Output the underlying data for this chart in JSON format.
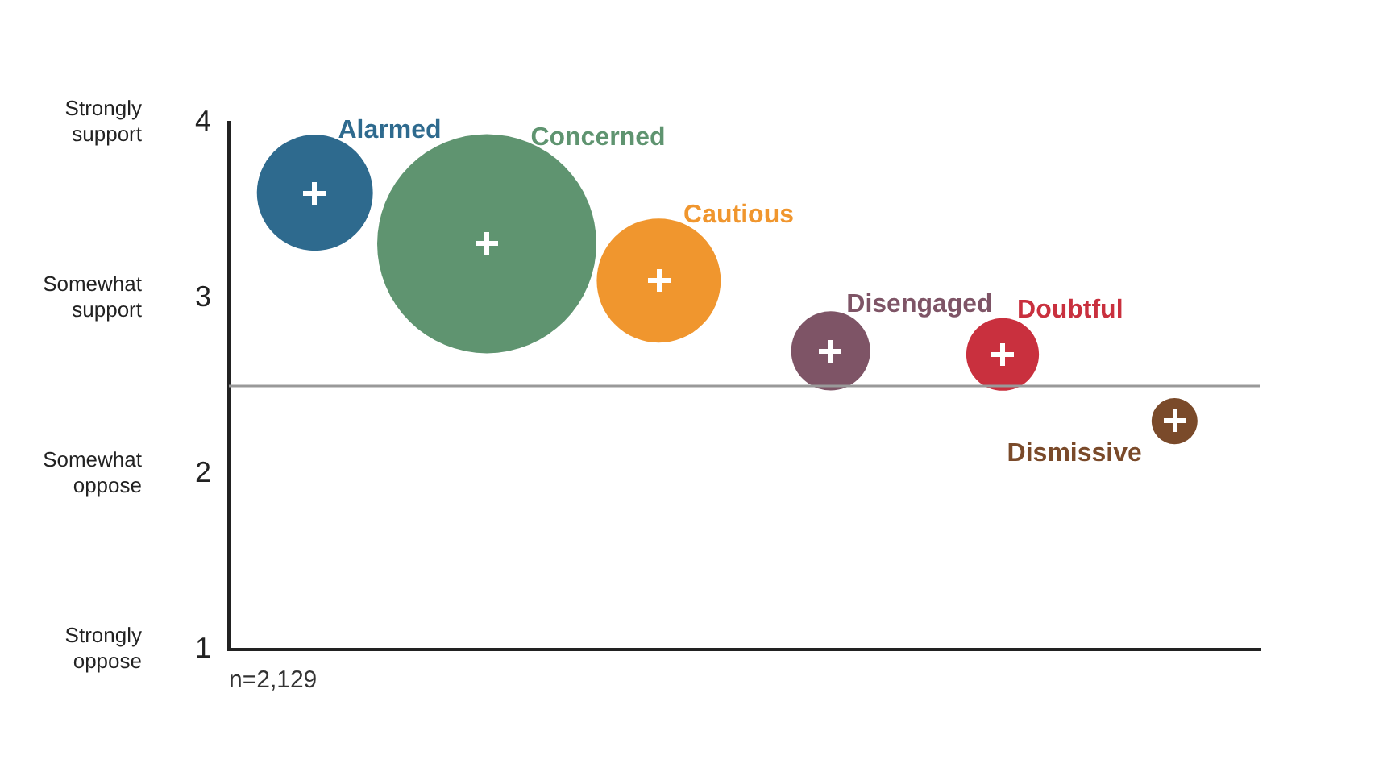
{
  "chart_data": {
    "type": "bubble",
    "categories": [
      null,
      null,
      null,
      null,
      null,
      null
    ],
    "series": [
      {
        "name": "Alarmed",
        "color": "#2e6a8e",
        "values": [
          3.6,
          null,
          null,
          null,
          null,
          null
        ],
        "sizes": [
          0.28,
          null,
          null,
          null,
          null,
          null
        ]
      },
      {
        "name": "Concerned",
        "color": "#5f9470",
        "values": [
          null,
          3.31,
          null,
          null,
          null,
          null
        ],
        "sizes": [
          null,
          1,
          null,
          null,
          null,
          null
        ]
      },
      {
        "name": "Cautious",
        "color": "#f0962e",
        "values": [
          null,
          null,
          3.1,
          null,
          null,
          null
        ],
        "sizes": [
          null,
          null,
          0.32,
          null,
          null,
          null
        ]
      },
      {
        "name": "Disengaged",
        "color": "#7e5466",
        "values": [
          null,
          null,
          null,
          2.7,
          null,
          null
        ],
        "sizes": [
          null,
          null,
          null,
          0.13,
          null,
          null
        ]
      },
      {
        "name": "Doubtful",
        "color": "#c9303e",
        "values": [
          null,
          null,
          null,
          null,
          2.68,
          null
        ],
        "sizes": [
          null,
          null,
          null,
          null,
          0.11,
          null
        ]
      },
      {
        "name": "Dismissive",
        "color": "#7a4a2a",
        "values": [
          null,
          null,
          null,
          null,
          null,
          2.3
        ],
        "sizes": [
          null,
          null,
          null,
          null,
          null,
          0.044
        ]
      }
    ],
    "ylim": [
      1,
      4
    ],
    "yticks": [
      1,
      2,
      3,
      4
    ],
    "ref_lines": [
      {
        "axis": "y",
        "value": 2.5,
        "color": "#999999"
      }
    ],
    "annotations": [
      "n=2,129",
      "Strongly support",
      "Somewhat support",
      "Somewhat oppose",
      "Strongly oppose"
    ],
    "tick_labels": "y",
    "grid": false,
    "legend": false
  }
}
